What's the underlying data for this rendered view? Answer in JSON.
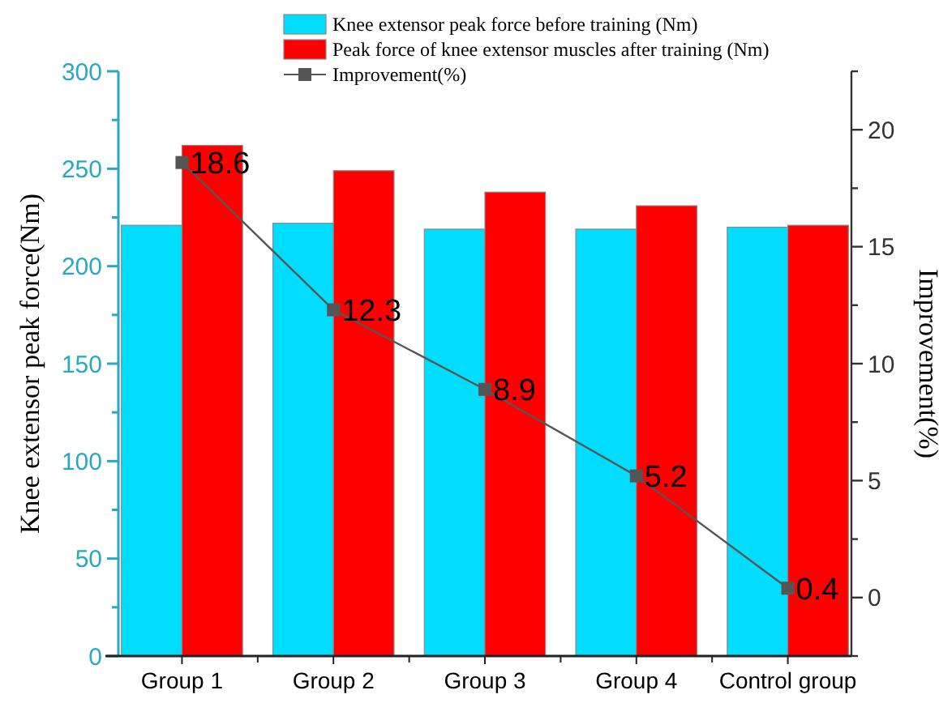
{
  "chart_data": {
    "type": "bar",
    "ylabel": "Knee extensor peak force(Nm)",
    "y2label": "Improvement(%)",
    "categories": [
      "Group 1",
      "Group 2",
      "Group 3",
      "Group 4",
      "Control group"
    ],
    "series": [
      {
        "name": "Knee extensor peak force before training (Nm)",
        "color": "#00ddff",
        "values": [
          221,
          222,
          219,
          219,
          220
        ]
      },
      {
        "name": "Peak force of knee extensor muscles after training (Nm)",
        "color": "#ff0000",
        "values": [
          262,
          249,
          238,
          231,
          221
        ]
      },
      {
        "name": "Improvement(%)",
        "type": "line",
        "axis": "y2",
        "color": "#555555",
        "marker": "square",
        "values": [
          18.6,
          12.3,
          8.9,
          5.2,
          0.4
        ],
        "value_labels": [
          "18.6",
          "12.3",
          "8.9",
          "5.2",
          "0.4"
        ]
      }
    ],
    "ylim": [
      0,
      300
    ],
    "yticks": [
      0,
      {
        "value": 25,
        "label": null
      },
      50,
      {
        "value": 75,
        "label": null
      },
      100,
      {
        "value": 125,
        "label": null
      },
      150,
      {
        "value": 175,
        "label": null
      },
      200,
      {
        "value": 225,
        "label": null
      },
      250,
      {
        "value": 275,
        "label": null
      },
      300
    ],
    "y2lim": [
      -2.5,
      22.5
    ],
    "y2ticks": [
      {
        "value": -2.5,
        "label": null
      },
      0,
      {
        "value": 2.5,
        "label": null
      },
      5,
      {
        "value": 7.5,
        "label": null
      },
      10,
      {
        "value": 12.5,
        "label": null
      },
      15,
      {
        "value": 17.5,
        "label": null
      },
      20,
      {
        "value": 22.5,
        "label": null
      }
    ],
    "legend": "top",
    "grid": false
  }
}
